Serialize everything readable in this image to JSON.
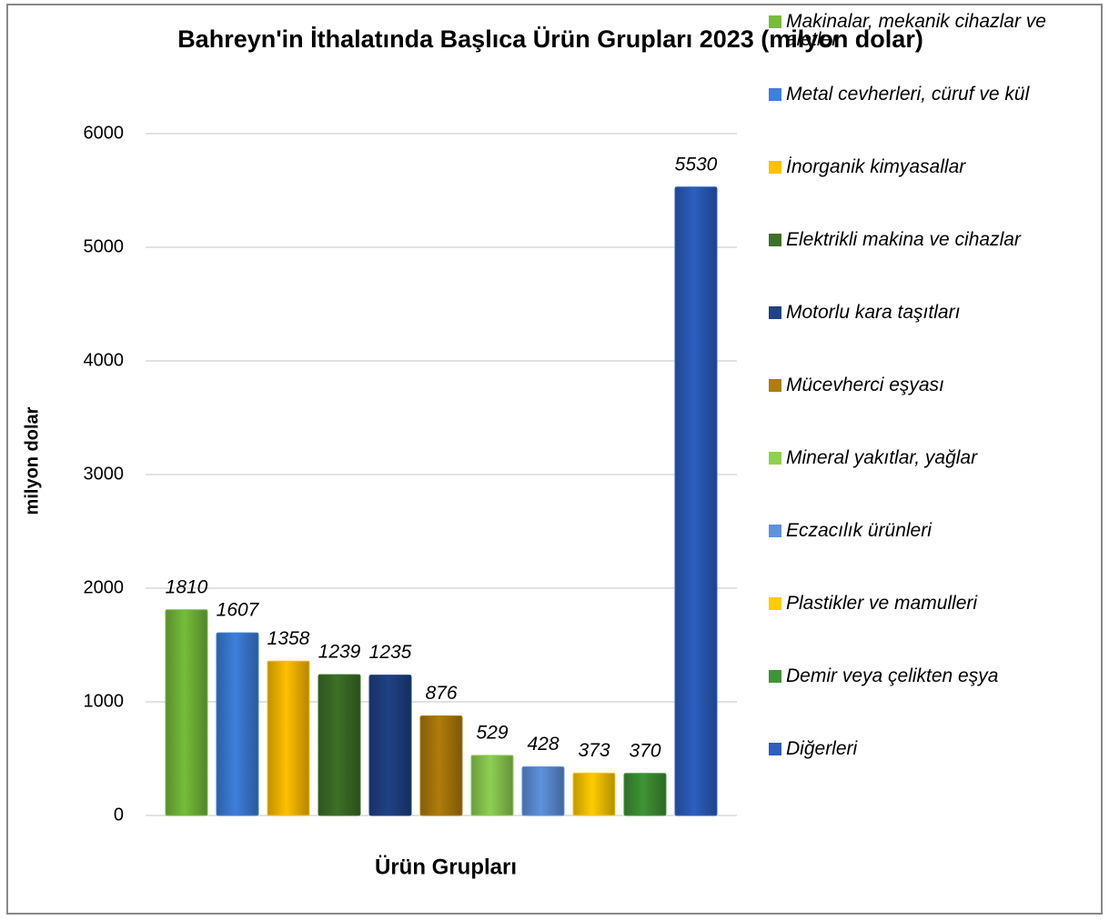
{
  "chart_data": {
    "type": "bar",
    "title": "Bahreyn'in İthalatında Başlıca Ürün Grupları 2023 (milyon dolar)",
    "xlabel": "Ürün Grupları",
    "ylabel": "milyon dolar",
    "categories": [
      "Makinalar, mekanik cihazlar ve aletler",
      "Metal cevherleri, cüruf ve kül",
      "İnorganik kimyasallar",
      "Elektrikli makina ve cihazlar",
      "Motorlu kara taşıtları",
      "Mücevherci eşyası",
      "Mineral yakıtlar, yağlar",
      "Eczacılık ürünleri",
      "Plastikler ve mamulleri",
      "Demir veya çelikten eşya",
      "Diğerleri"
    ],
    "values": [
      1810,
      1607,
      1358,
      1239,
      1235,
      876,
      529,
      428,
      373,
      370,
      5530
    ],
    "colors": [
      "#76bd3a",
      "#3d7fdc",
      "#ffc000",
      "#3d7127",
      "#1f4286",
      "#b07d0c",
      "#8fd052",
      "#5e92de",
      "#ffcc00",
      "#3f9435",
      "#2c5fc0"
    ],
    "ylim": [
      0,
      6000
    ],
    "yticks": [
      0,
      1000,
      2000,
      3000,
      4000,
      5000,
      6000
    ],
    "grid": true,
    "legend": "right"
  }
}
